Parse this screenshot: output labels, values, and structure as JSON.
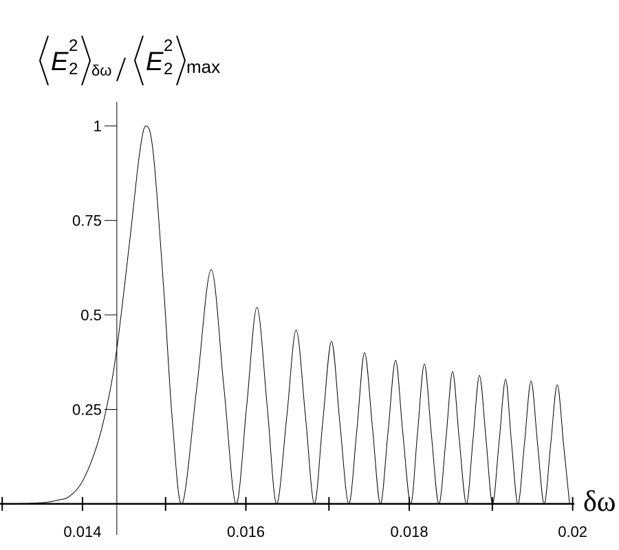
{
  "chart_data": {
    "type": "line",
    "ylabel": {
      "numerator": {
        "symbol": "E",
        "superscript": "2",
        "subscript": "2",
        "average_over": "δω"
      },
      "denominator": {
        "symbol": "E",
        "superscript": "2",
        "subscript": "2",
        "average_over": "max"
      }
    },
    "xlabel": "δω",
    "x": [
      0.013,
      0.0135,
      0.0137,
      0.01384,
      0.014,
      0.01417,
      0.0143,
      0.01442,
      0.01458,
      0.0147,
      0.01478,
      0.01487,
      0.015,
      0.0151,
      0.01522,
      0.0154,
      0.015575,
      0.01573,
      0.015878,
      0.01601,
      0.016135,
      0.01626,
      0.016375,
      0.0165,
      0.016615,
      0.01673,
      0.016838,
      0.01694,
      0.017048,
      0.01715,
      0.017259,
      0.01736,
      0.017453,
      0.01755,
      0.017646,
      0.01774,
      0.017832,
      0.01792,
      0.018017,
      0.0181,
      0.018185,
      0.01827,
      0.018362,
      0.01845,
      0.01853,
      0.01861,
      0.018699,
      0.01878,
      0.018859,
      0.01894,
      0.019019,
      0.0191,
      0.019179,
      0.01925,
      0.01933,
      0.01941,
      0.019491,
      0.01957,
      0.019651,
      0.01973,
      0.019811,
      0.01989,
      0.019962
    ],
    "series": [
      {
        "color": "#000000",
        "values": [
          0,
          0.003,
          0.01,
          0.02,
          0.06,
          0.15,
          0.26,
          0.41,
          0.7,
          0.93,
          1.0,
          0.92,
          0.55,
          0.22,
          0,
          0.31,
          0.62,
          0.31,
          0,
          0.26,
          0.52,
          0.26,
          0,
          0.23,
          0.46,
          0.23,
          0,
          0.215,
          0.43,
          0.215,
          0,
          0.2,
          0.4,
          0.2,
          0,
          0.19,
          0.38,
          0.19,
          0,
          0.185,
          0.37,
          0.185,
          0,
          0.175,
          0.35,
          0.175,
          0,
          0.17,
          0.34,
          0.17,
          0,
          0.165,
          0.33,
          0.165,
          0,
          0.16,
          0.325,
          0.16,
          0,
          0.155,
          0.315,
          0.155,
          0
        ]
      }
    ],
    "xlim": [
      0.01299,
      0.02002
    ],
    "ylim": [
      -0.082,
      1.064
    ],
    "xticks": [
      0.014,
      0.016,
      0.018,
      0.02
    ],
    "xminorticks": [
      0.013,
      0.015,
      0.017,
      0.019
    ],
    "yticks": [
      0.25,
      0.5,
      0.75,
      1
    ],
    "y_axis_at": 0.01442
  }
}
